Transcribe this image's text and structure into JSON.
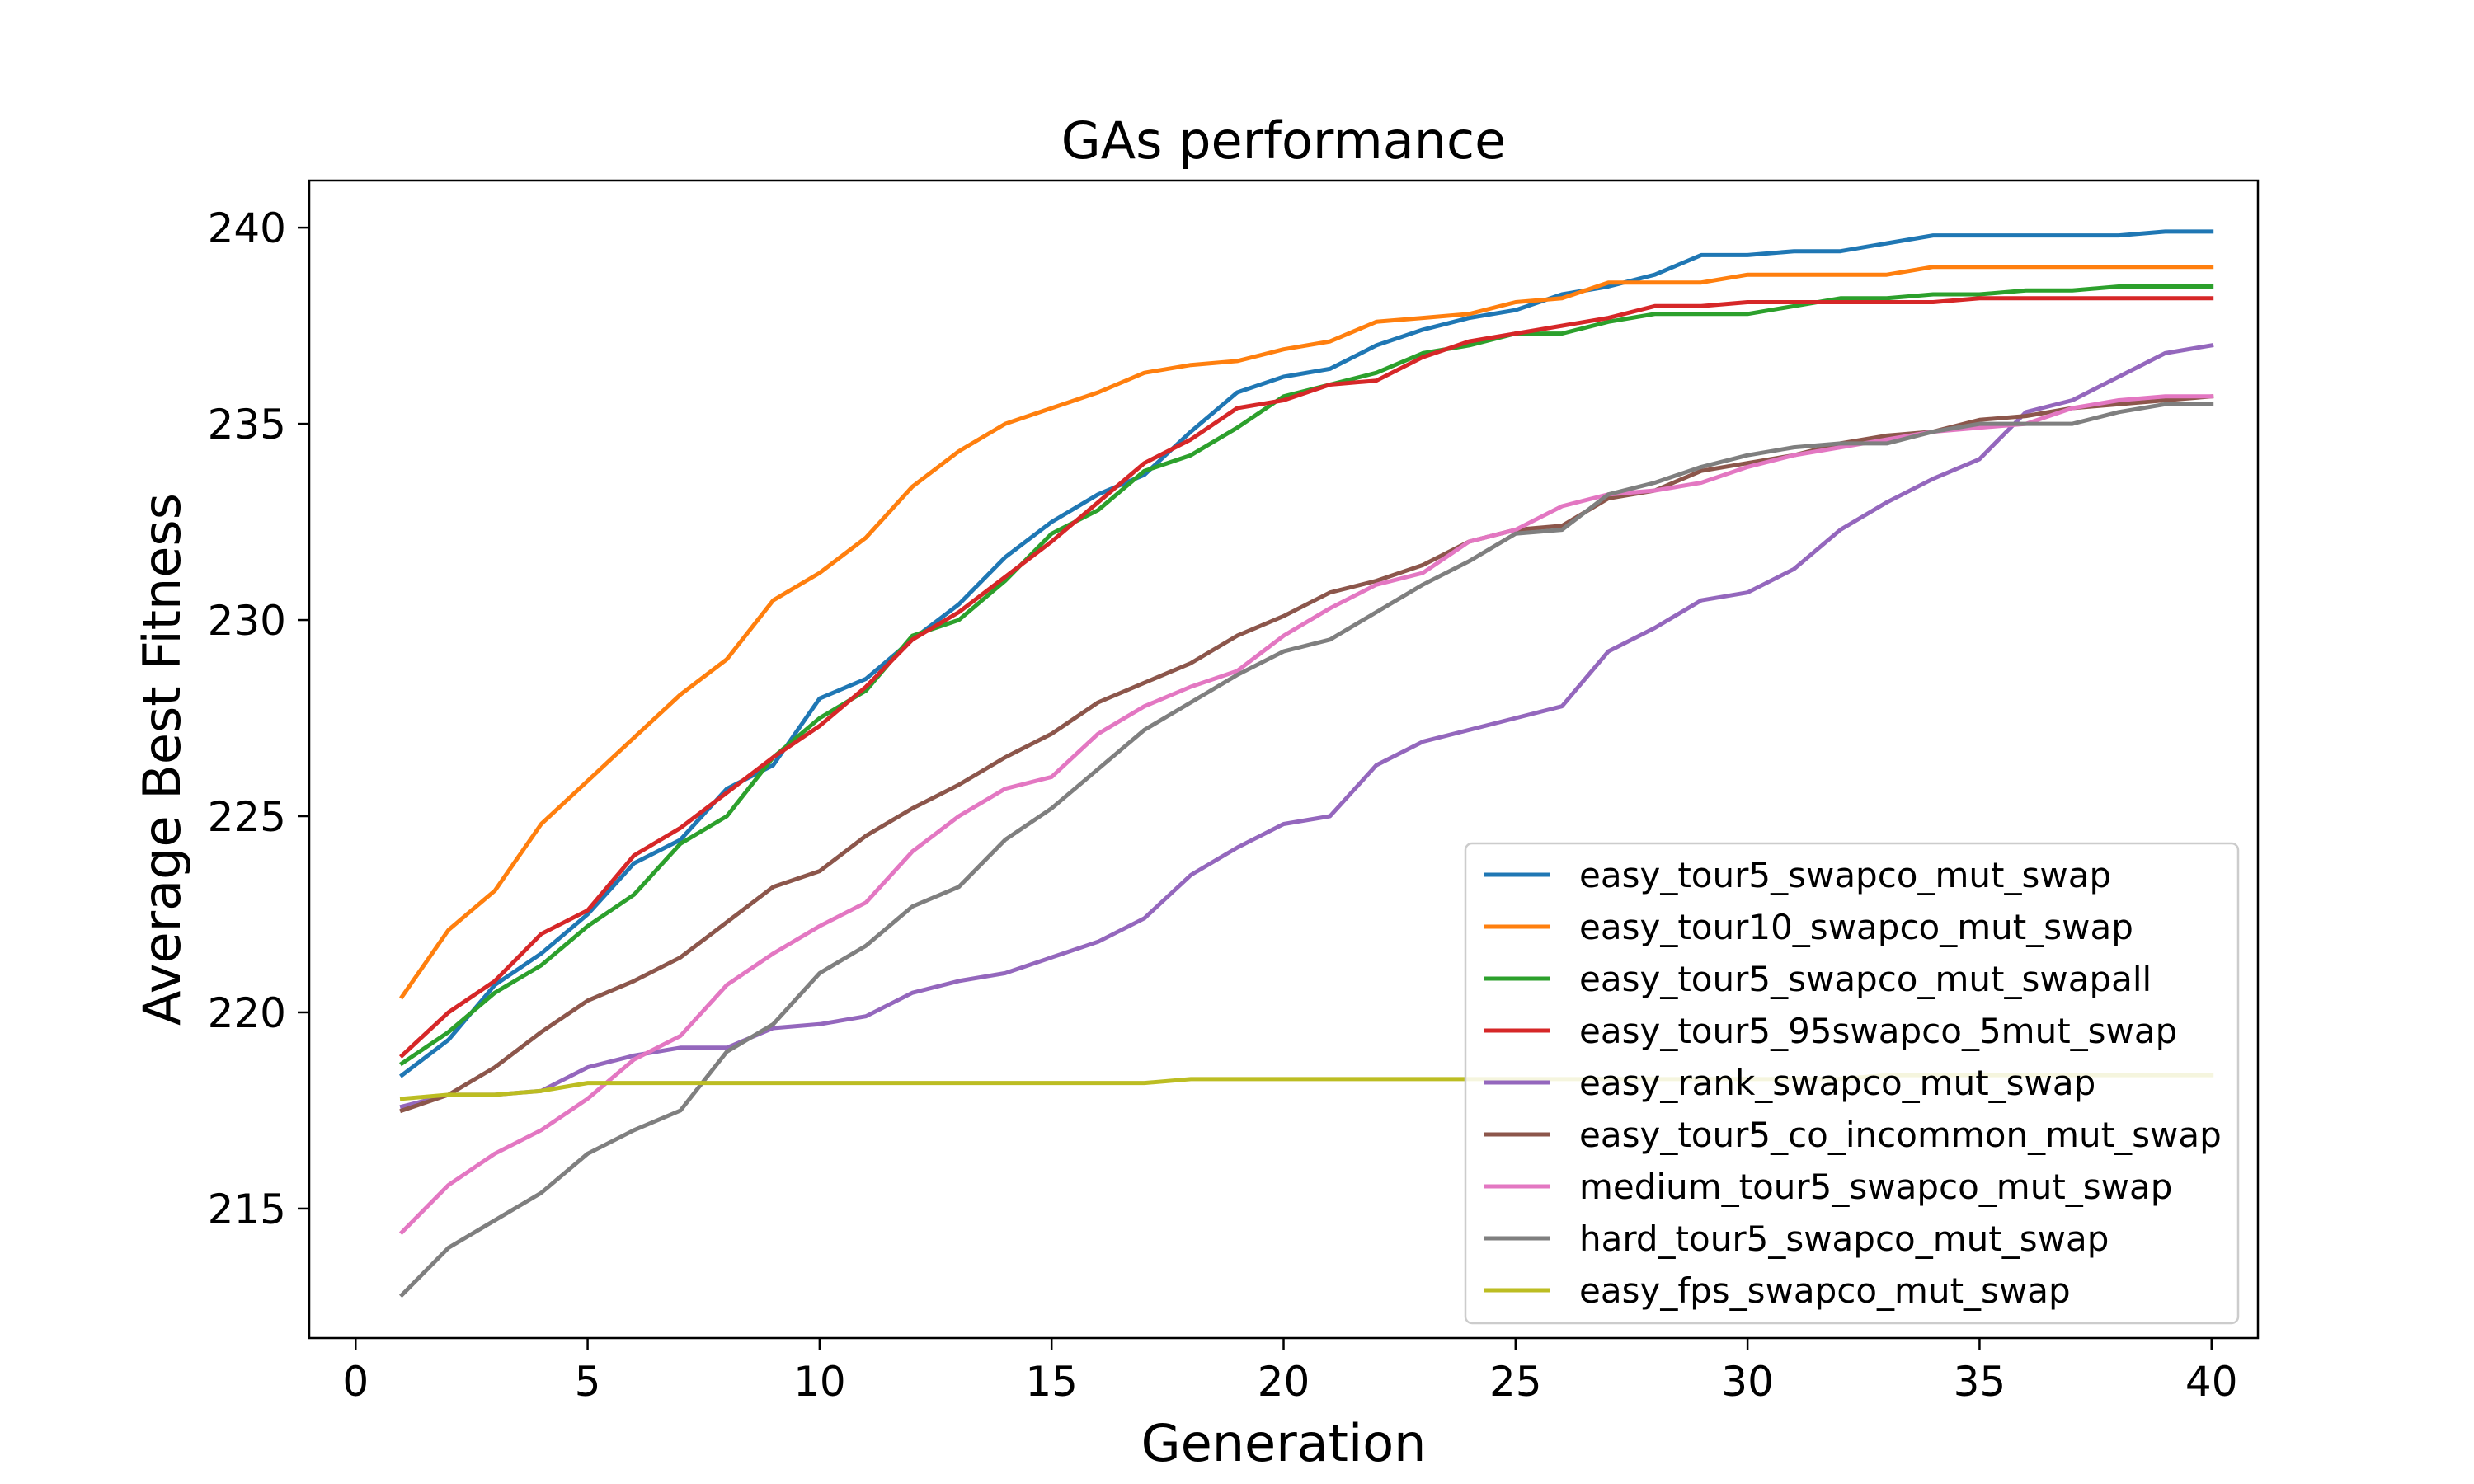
{
  "chart_data": {
    "type": "line",
    "title": "GAs performance",
    "xlabel": "Generation",
    "ylabel": "Average Best Fitness",
    "xlim": [
      -1,
      41
    ],
    "ylim": [
      211.7,
      241.2
    ],
    "xticks": [
      0,
      5,
      10,
      15,
      20,
      25,
      30,
      35,
      40
    ],
    "yticks": [
      215,
      220,
      225,
      230,
      235,
      240
    ],
    "grid": false,
    "legend_position": "lower-right",
    "x": [
      1,
      2,
      3,
      4,
      5,
      6,
      7,
      8,
      9,
      10,
      11,
      12,
      13,
      14,
      15,
      16,
      17,
      18,
      19,
      20,
      21,
      22,
      23,
      24,
      25,
      26,
      27,
      28,
      29,
      30,
      31,
      32,
      33,
      34,
      35,
      36,
      37,
      38,
      39,
      40
    ],
    "series": [
      {
        "name": "easy_tour5_swapco_mut_swap",
        "color": "#1f77b4",
        "values": [
          218.4,
          219.3,
          220.7,
          221.5,
          222.5,
          223.8,
          224.4,
          225.7,
          226.3,
          228.0,
          228.5,
          229.5,
          230.4,
          231.6,
          232.5,
          233.2,
          233.7,
          234.8,
          235.8,
          236.2,
          236.4,
          237.0,
          237.4,
          237.7,
          237.9,
          238.3,
          238.5,
          238.8,
          239.3,
          239.3,
          239.4,
          239.4,
          239.6,
          239.8,
          239.8,
          239.8,
          239.8,
          239.8,
          239.9,
          239.9
        ]
      },
      {
        "name": "easy_tour10_swapco_mut_swap",
        "color": "#ff7f0e",
        "values": [
          220.4,
          222.1,
          223.1,
          224.8,
          225.9,
          227.0,
          228.1,
          229.0,
          230.5,
          231.2,
          232.1,
          233.4,
          234.3,
          235.0,
          235.4,
          235.8,
          236.3,
          236.5,
          236.6,
          236.9,
          237.1,
          237.6,
          237.7,
          237.8,
          238.1,
          238.2,
          238.6,
          238.6,
          238.6,
          238.8,
          238.8,
          238.8,
          238.8,
          239.0,
          239.0,
          239.0,
          239.0,
          239.0,
          239.0,
          239.0
        ]
      },
      {
        "name": "easy_tour5_swapco_mut_swapall",
        "color": "#2ca02c",
        "values": [
          218.7,
          219.5,
          220.5,
          221.2,
          222.2,
          223.0,
          224.3,
          225.0,
          226.5,
          227.5,
          228.2,
          229.6,
          230.0,
          231.0,
          232.2,
          232.8,
          233.8,
          234.2,
          234.9,
          235.7,
          236.0,
          236.3,
          236.8,
          237.0,
          237.3,
          237.3,
          237.6,
          237.8,
          237.8,
          237.8,
          238.0,
          238.2,
          238.2,
          238.3,
          238.3,
          238.4,
          238.4,
          238.5,
          238.5,
          238.5
        ]
      },
      {
        "name": "easy_tour5_95swapco_5mut_swap",
        "color": "#d62728",
        "values": [
          218.9,
          220.0,
          220.8,
          222.0,
          222.6,
          224.0,
          224.7,
          225.6,
          226.5,
          227.3,
          228.3,
          229.5,
          230.2,
          231.1,
          232.0,
          233.0,
          234.0,
          234.6,
          235.4,
          235.6,
          236.0,
          236.1,
          236.7,
          237.1,
          237.3,
          237.5,
          237.7,
          238.0,
          238.0,
          238.1,
          238.1,
          238.1,
          238.1,
          238.1,
          238.2,
          238.2,
          238.2,
          238.2,
          238.2,
          238.2
        ]
      },
      {
        "name": "easy_rank_swapco_mut_swap",
        "color": "#9467bd",
        "values": [
          217.6,
          217.9,
          217.9,
          218.0,
          218.6,
          218.9,
          219.1,
          219.1,
          219.6,
          219.7,
          219.9,
          220.5,
          220.8,
          221.0,
          221.4,
          221.8,
          222.4,
          223.5,
          224.2,
          224.8,
          225.0,
          226.3,
          226.9,
          227.2,
          227.5,
          227.8,
          229.2,
          229.8,
          230.5,
          230.7,
          231.3,
          232.3,
          233.0,
          233.6,
          234.1,
          235.3,
          235.6,
          236.2,
          236.8,
          237.0
        ]
      },
      {
        "name": "easy_tour5_co_incommon_mut_swap",
        "color": "#8c564b",
        "values": [
          217.5,
          217.9,
          218.6,
          219.5,
          220.3,
          220.8,
          221.4,
          222.3,
          223.2,
          223.6,
          224.5,
          225.2,
          225.8,
          226.5,
          227.1,
          227.9,
          228.4,
          228.9,
          229.6,
          230.1,
          230.7,
          231.0,
          231.4,
          232.0,
          232.3,
          232.4,
          233.1,
          233.3,
          233.8,
          234.0,
          234.2,
          234.5,
          234.7,
          234.8,
          235.1,
          235.2,
          235.4,
          235.5,
          235.6,
          235.7
        ]
      },
      {
        "name": "medium_tour5_swapco_mut_swap",
        "color": "#e377c2",
        "values": [
          214.4,
          215.6,
          216.4,
          217.0,
          217.8,
          218.8,
          219.4,
          220.7,
          221.5,
          222.2,
          222.8,
          224.1,
          225.0,
          225.7,
          226.0,
          227.1,
          227.8,
          228.3,
          228.7,
          229.6,
          230.3,
          230.9,
          231.2,
          232.0,
          232.3,
          232.9,
          233.2,
          233.3,
          233.5,
          233.9,
          234.2,
          234.4,
          234.6,
          234.8,
          234.9,
          235.0,
          235.4,
          235.6,
          235.7,
          235.7
        ]
      },
      {
        "name": "hard_tour5_swapco_mut_swap",
        "color": "#7f7f7f",
        "values": [
          212.8,
          214.0,
          214.7,
          215.4,
          216.4,
          217.0,
          217.5,
          219.0,
          219.7,
          221.0,
          221.7,
          222.7,
          223.2,
          224.4,
          225.2,
          226.2,
          227.2,
          227.9,
          228.6,
          229.2,
          229.5,
          230.2,
          230.9,
          231.5,
          232.2,
          232.3,
          233.2,
          233.5,
          233.9,
          234.2,
          234.4,
          234.5,
          234.5,
          234.8,
          235.0,
          235.0,
          235.0,
          235.3,
          235.5,
          235.5
        ]
      },
      {
        "name": "easy_fps_swapco_mut_swap",
        "color": "#bcbd22",
        "values": [
          217.8,
          217.9,
          217.9,
          218.0,
          218.2,
          218.2,
          218.2,
          218.2,
          218.2,
          218.2,
          218.2,
          218.2,
          218.2,
          218.2,
          218.2,
          218.2,
          218.2,
          218.3,
          218.3,
          218.3,
          218.3,
          218.3,
          218.3,
          218.3,
          218.3,
          218.3,
          218.3,
          218.3,
          218.3,
          218.3,
          218.3,
          218.3,
          218.4,
          218.4,
          218.4,
          218.4,
          218.4,
          218.4,
          218.4,
          218.4
        ]
      }
    ]
  }
}
